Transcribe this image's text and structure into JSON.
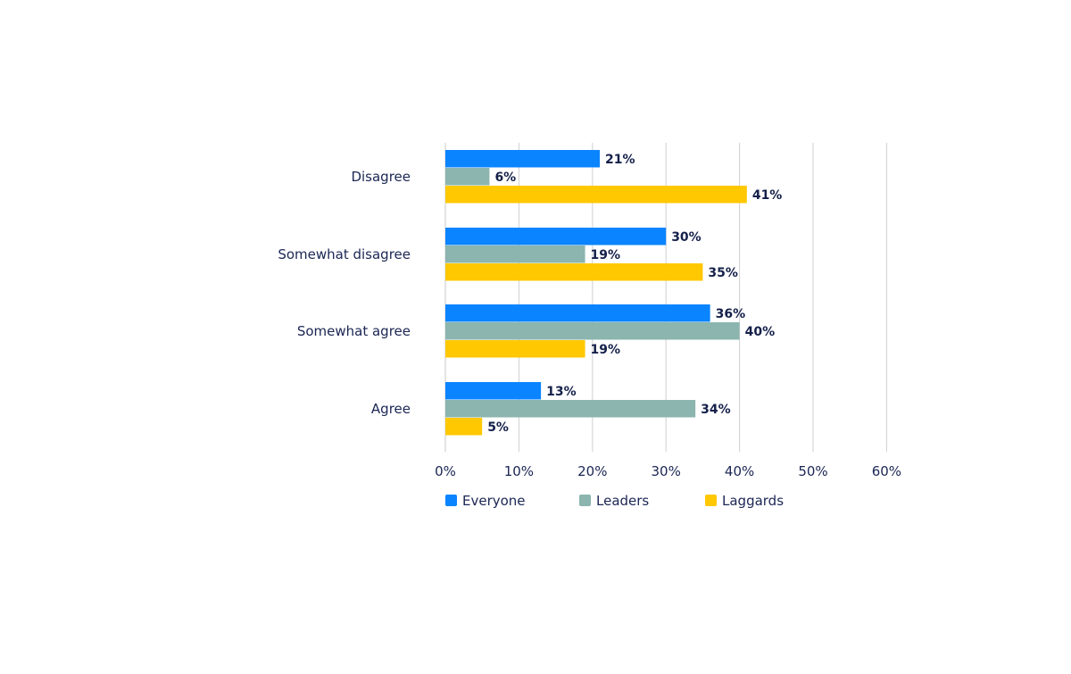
{
  "chart_data": {
    "type": "bar",
    "orientation": "horizontal",
    "categories": [
      "Disagree",
      "Somewhat disagree",
      "Somewhat agree",
      "Agree"
    ],
    "series": [
      {
        "name": "Everyone",
        "values": [
          21,
          30,
          36,
          13
        ],
        "color": "#0A84FF"
      },
      {
        "name": "Leaders",
        "values": [
          6,
          19,
          40,
          34
        ],
        "color": "#8BB5AE"
      },
      {
        "name": "Laggards",
        "values": [
          41,
          35,
          19,
          5
        ],
        "color": "#FFC800"
      }
    ],
    "data_labels": [
      [
        "21%",
        "30%",
        "36%",
        "13%"
      ],
      [
        "6%",
        "19%",
        "40%",
        "34%"
      ],
      [
        "41%",
        "35%",
        "19%",
        "5%"
      ]
    ],
    "xlim": [
      0,
      60
    ],
    "xticks": [
      0,
      10,
      20,
      30,
      40,
      50,
      60
    ],
    "xtick_labels": [
      "0%",
      "10%",
      "20%",
      "30%",
      "40%",
      "50%",
      "60%"
    ],
    "title": "",
    "xlabel": "",
    "ylabel": "",
    "grid": "vertical",
    "legend": "bottom",
    "text_color": "#14204A"
  }
}
